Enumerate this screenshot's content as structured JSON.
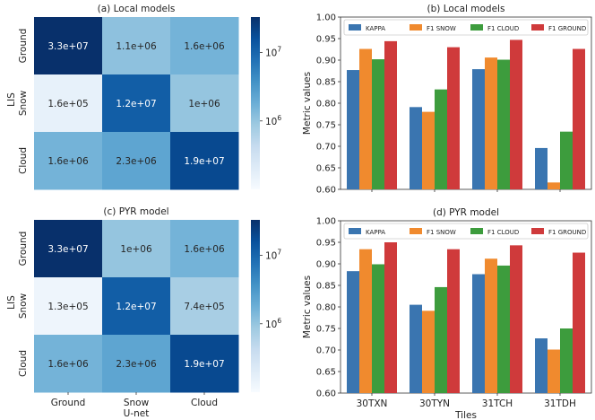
{
  "chart_data": [
    {
      "type": "heatmap",
      "title": "(a) Local models",
      "ylabel": "LIS",
      "row_labels": [
        "Ground",
        "Snow",
        "Cloud"
      ],
      "col_labels": [
        "Ground",
        "Snow",
        "Cloud"
      ],
      "values": [
        [
          33000000,
          1100000,
          1600000
        ],
        [
          160000,
          12000000,
          1000000
        ],
        [
          1600000,
          2300000,
          19000000
        ]
      ],
      "cell_text": [
        [
          "3.3e+07",
          "1.1e+06",
          "1.6e+06"
        ],
        [
          "1.6e+05",
          "1.2e+07",
          "1e+06"
        ],
        [
          "1.6e+06",
          "2.3e+06",
          "1.9e+07"
        ]
      ],
      "colorbar": {
        "scale": "log",
        "range": [
          100000,
          33000000
        ],
        "colormap": "Blues",
        "ticks": [
          {
            "value": 1000000,
            "label": "10^6"
          },
          {
            "value": 10000000,
            "label": "10^7"
          }
        ]
      }
    },
    {
      "type": "bar",
      "title": "(b) Local models",
      "ylabel": "Metric values",
      "categories": [
        "30TXN",
        "30TYN",
        "31TCH",
        "31TDH"
      ],
      "ylim": [
        0.6,
        1.0
      ],
      "yticks": [
        "0.60",
        "0.65",
        "0.70",
        "0.75",
        "0.80",
        "0.85",
        "0.90",
        "0.95",
        "1.00"
      ],
      "legend_position": "top",
      "series": [
        {
          "name": "KAPPA",
          "color": "#3a75b0",
          "values": [
            0.877,
            0.791,
            0.879,
            0.696
          ]
        },
        {
          "name": "F1 SNOW",
          "color": "#f08a2e",
          "values": [
            0.926,
            0.78,
            0.906,
            0.616
          ]
        },
        {
          "name": "F1 CLOUD",
          "color": "#3d9c3d",
          "values": [
            0.902,
            0.832,
            0.901,
            0.734
          ]
        },
        {
          "name": "F1 GROUND",
          "color": "#cf3a3b",
          "values": [
            0.944,
            0.93,
            0.947,
            0.926
          ]
        }
      ]
    },
    {
      "type": "heatmap",
      "title": "(c) PYR model",
      "ylabel": "LIS",
      "xlabel": "U-net",
      "row_labels": [
        "Ground",
        "Snow",
        "Cloud"
      ],
      "col_labels": [
        "Ground",
        "Snow",
        "Cloud"
      ],
      "values": [
        [
          33000000,
          1000000,
          1600000
        ],
        [
          130000,
          12000000,
          740000
        ],
        [
          1600000,
          2300000,
          19000000
        ]
      ],
      "cell_text": [
        [
          "3.3e+07",
          "1e+06",
          "1.6e+06"
        ],
        [
          "1.3e+05",
          "1.2e+07",
          "7.4e+05"
        ],
        [
          "1.6e+06",
          "2.3e+06",
          "1.9e+07"
        ]
      ],
      "colorbar": {
        "scale": "log",
        "range": [
          100000,
          33000000
        ],
        "colormap": "Blues",
        "ticks": [
          {
            "value": 1000000,
            "label": "10^6"
          },
          {
            "value": 10000000,
            "label": "10^7"
          }
        ]
      }
    },
    {
      "type": "bar",
      "title": "(d) PYR model",
      "ylabel": "Metric values",
      "xlabel": "Tiles",
      "categories": [
        "30TXN",
        "30TYN",
        "31TCH",
        "31TDH"
      ],
      "ylim": [
        0.6,
        1.0
      ],
      "yticks": [
        "0.60",
        "0.65",
        "0.70",
        "0.75",
        "0.80",
        "0.85",
        "0.90",
        "0.95",
        "1.00"
      ],
      "legend_position": "top",
      "series": [
        {
          "name": "KAPPA",
          "color": "#3a75b0",
          "values": [
            0.883,
            0.805,
            0.876,
            0.727
          ]
        },
        {
          "name": "F1 SNOW",
          "color": "#f08a2e",
          "values": [
            0.934,
            0.791,
            0.912,
            0.701
          ]
        },
        {
          "name": "F1 CLOUD",
          "color": "#3d9c3d",
          "values": [
            0.899,
            0.846,
            0.896,
            0.75
          ]
        },
        {
          "name": "F1 GROUND",
          "color": "#cf3a3b",
          "values": [
            0.95,
            0.934,
            0.943,
            0.926
          ]
        }
      ]
    }
  ]
}
